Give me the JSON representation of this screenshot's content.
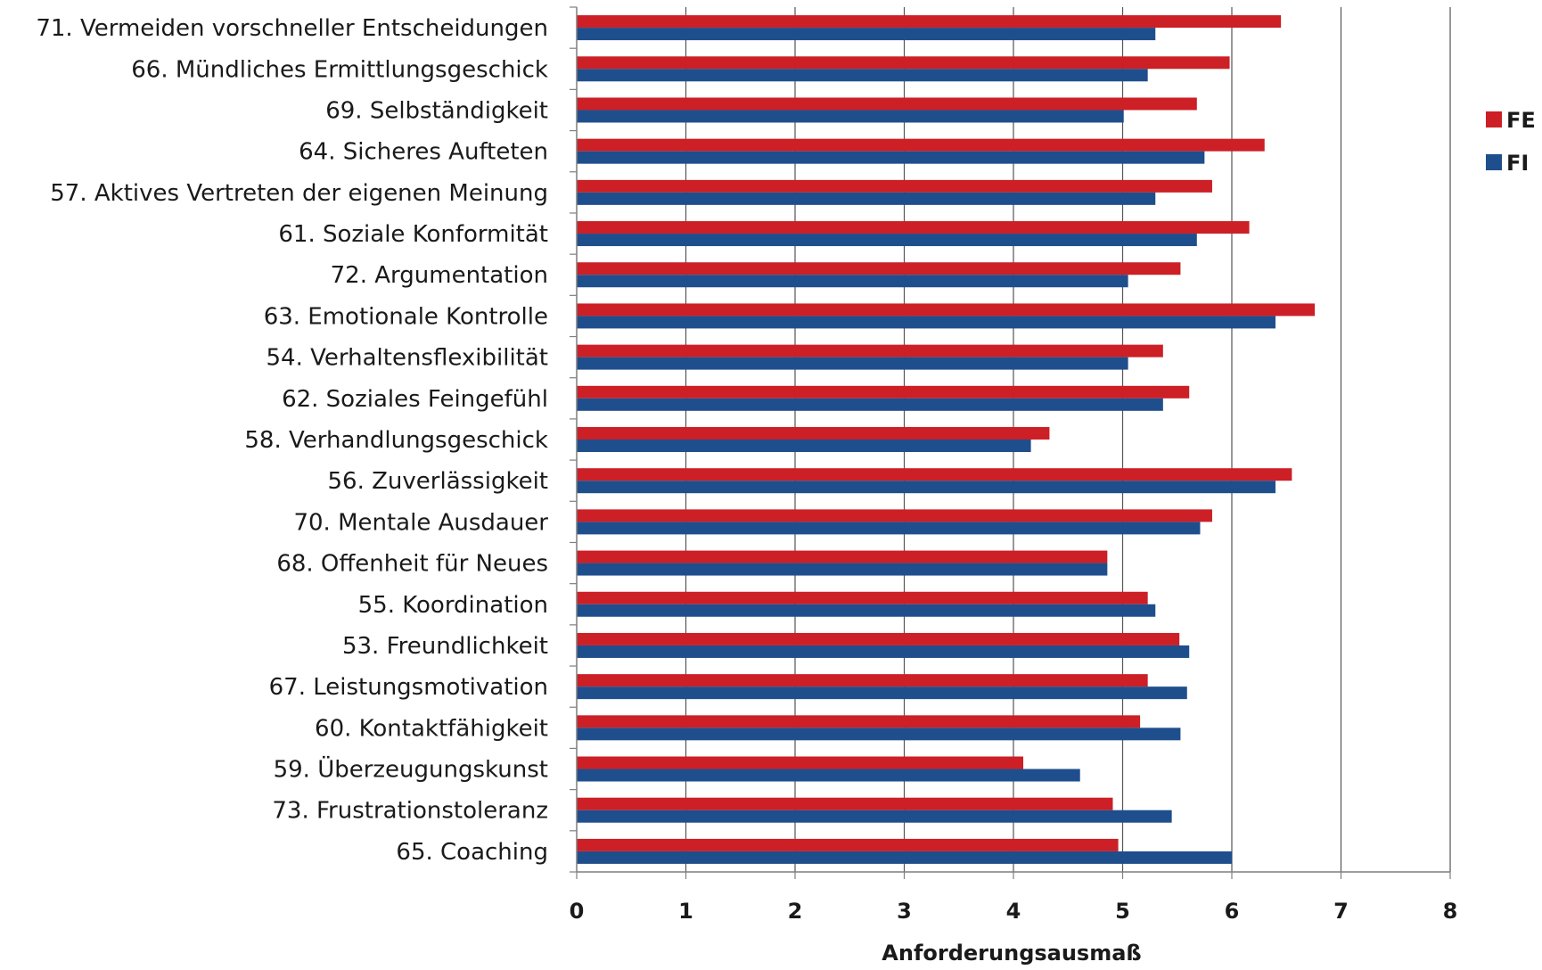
{
  "chart_data": {
    "type": "bar",
    "orientation": "horizontal",
    "categories": [
      "71. Vermeiden vorschneller Entscheidungen",
      "66. Mündliches Ermittlungsgeschick",
      "69. Selbständigkeit",
      "64. Sicheres Aufteten",
      "57. Aktives Vertreten der eigenen Meinung",
      "61. Soziale Konformität",
      "72. Argumentation",
      "63. Emotionale Kontrolle",
      "54. Verhaltensflexibilität",
      "62. Soziales Feingefühl",
      "58. Verhandlungsgeschick",
      "56. Zuverlässigkeit",
      "70. Mentale Ausdauer",
      "68. Offenheit für Neues",
      "55. Koordination",
      "53. Freundlichkeit",
      "67. Leistungsmotivation",
      "60. Kontaktfähigkeit",
      "59. Überzeugungskunst",
      "73. Frustrationstoleranz",
      "65. Coaching"
    ],
    "series": [
      {
        "name": "FE",
        "color": "#cc1f26",
        "values": [
          6.45,
          5.98,
          5.68,
          6.3,
          5.82,
          6.16,
          5.53,
          6.76,
          5.37,
          5.61,
          4.33,
          6.55,
          5.82,
          4.86,
          5.23,
          5.52,
          5.23,
          5.16,
          4.09,
          4.91,
          4.96
        ]
      },
      {
        "name": "FI",
        "color": "#1f4e8c",
        "values": [
          5.3,
          5.23,
          5.01,
          5.75,
          5.3,
          5.68,
          5.05,
          6.4,
          5.05,
          5.37,
          4.16,
          6.4,
          5.71,
          4.86,
          5.3,
          5.61,
          5.59,
          5.53,
          4.61,
          5.45,
          6.0
        ]
      }
    ],
    "xlabel": "Anforderungsausmaß",
    "xlim": [
      0,
      8
    ],
    "xticks": [
      "0",
      "1",
      "2",
      "3",
      "4",
      "5",
      "6",
      "7",
      "8"
    ],
    "grid": true,
    "legend": "right",
    "gridline_color": "#555555"
  }
}
